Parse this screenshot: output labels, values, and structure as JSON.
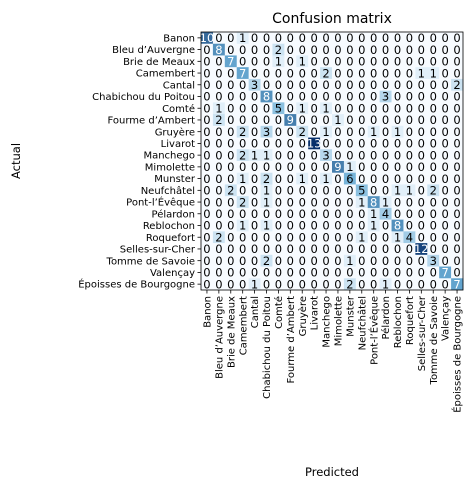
{
  "chart_data": {
    "type": "heatmap",
    "title": "Confusion matrix",
    "xlabel": "Predicted",
    "ylabel": "Actual",
    "categories": [
      "Banon",
      "Bleu d’Auvergne",
      "Brie de Meaux",
      "Camembert",
      "Cantal",
      "Chabichou du Poitou",
      "Comté",
      "Fourme d’Ambert",
      "Gruyère",
      "Livarot",
      "Manchego",
      "Mimolette",
      "Munster",
      "Neufchâtel",
      "Pont-l’Évêque",
      "Pélardon",
      "Reblochon",
      "Roquefort",
      "Selles-sur-Cher",
      "Tomme de Savoie",
      "Valençay",
      "Époisses de Bourgogne"
    ],
    "matrix": [
      [
        10,
        0,
        0,
        1,
        0,
        0,
        0,
        0,
        0,
        0,
        0,
        0,
        0,
        0,
        0,
        0,
        0,
        0,
        0,
        0,
        0,
        0
      ],
      [
        0,
        8,
        0,
        0,
        0,
        0,
        2,
        0,
        0,
        0,
        0,
        0,
        0,
        0,
        0,
        0,
        0,
        0,
        0,
        0,
        0,
        0
      ],
      [
        0,
        0,
        7,
        0,
        0,
        0,
        1,
        0,
        1,
        0,
        0,
        0,
        0,
        0,
        0,
        0,
        0,
        0,
        0,
        0,
        0,
        0
      ],
      [
        0,
        0,
        0,
        7,
        0,
        0,
        0,
        0,
        0,
        0,
        2,
        0,
        0,
        0,
        0,
        0,
        0,
        0,
        1,
        1,
        0,
        0
      ],
      [
        0,
        0,
        0,
        0,
        3,
        0,
        0,
        0,
        0,
        0,
        0,
        0,
        0,
        0,
        0,
        0,
        0,
        0,
        0,
        0,
        0,
        2
      ],
      [
        0,
        0,
        0,
        0,
        0,
        8,
        0,
        0,
        0,
        0,
        0,
        0,
        0,
        0,
        0,
        3,
        0,
        0,
        0,
        0,
        0,
        0
      ],
      [
        0,
        1,
        0,
        0,
        0,
        0,
        5,
        0,
        1,
        0,
        1,
        0,
        0,
        0,
        0,
        0,
        0,
        0,
        0,
        0,
        0,
        0
      ],
      [
        0,
        2,
        0,
        0,
        0,
        0,
        0,
        9,
        0,
        0,
        0,
        1,
        0,
        0,
        0,
        0,
        0,
        0,
        0,
        0,
        0,
        0
      ],
      [
        0,
        0,
        0,
        2,
        0,
        3,
        0,
        0,
        2,
        0,
        1,
        0,
        0,
        0,
        1,
        0,
        1,
        0,
        0,
        0,
        0,
        0
      ],
      [
        0,
        0,
        0,
        0,
        0,
        0,
        0,
        0,
        0,
        13,
        0,
        0,
        0,
        0,
        0,
        0,
        0,
        0,
        0,
        0,
        0,
        0
      ],
      [
        0,
        0,
        0,
        2,
        1,
        1,
        0,
        0,
        0,
        0,
        3,
        0,
        0,
        0,
        0,
        0,
        0,
        0,
        0,
        0,
        0,
        0
      ],
      [
        0,
        0,
        0,
        0,
        0,
        0,
        0,
        0,
        0,
        0,
        0,
        9,
        1,
        0,
        0,
        0,
        0,
        0,
        0,
        0,
        0,
        0
      ],
      [
        0,
        0,
        0,
        1,
        0,
        2,
        0,
        0,
        1,
        0,
        1,
        0,
        6,
        0,
        0,
        0,
        0,
        0,
        0,
        0,
        0,
        0
      ],
      [
        0,
        0,
        2,
        0,
        0,
        1,
        0,
        0,
        0,
        0,
        0,
        0,
        0,
        5,
        0,
        0,
        1,
        1,
        0,
        2,
        0,
        0
      ],
      [
        0,
        0,
        0,
        2,
        0,
        1,
        0,
        0,
        0,
        0,
        0,
        0,
        0,
        1,
        8,
        1,
        0,
        0,
        0,
        0,
        0,
        0
      ],
      [
        0,
        0,
        0,
        0,
        0,
        0,
        0,
        0,
        0,
        0,
        0,
        0,
        0,
        0,
        1,
        4,
        0,
        0,
        0,
        0,
        0,
        0
      ],
      [
        0,
        0,
        0,
        1,
        0,
        1,
        0,
        0,
        0,
        0,
        0,
        0,
        0,
        0,
        1,
        0,
        8,
        0,
        0,
        0,
        0,
        0
      ],
      [
        0,
        2,
        0,
        0,
        0,
        0,
        0,
        0,
        0,
        0,
        0,
        0,
        0,
        1,
        0,
        0,
        1,
        4,
        0,
        0,
        0,
        0
      ],
      [
        0,
        0,
        0,
        0,
        0,
        0,
        0,
        0,
        0,
        0,
        0,
        0,
        0,
        0,
        0,
        0,
        0,
        0,
        12,
        0,
        0,
        0
      ],
      [
        0,
        0,
        0,
        0,
        0,
        2,
        0,
        0,
        0,
        0,
        0,
        0,
        1,
        0,
        0,
        0,
        0,
        0,
        0,
        3,
        0,
        0
      ],
      [
        0,
        0,
        0,
        0,
        0,
        0,
        0,
        0,
        0,
        0,
        0,
        0,
        0,
        0,
        0,
        0,
        0,
        0,
        0,
        0,
        7,
        0
      ],
      [
        0,
        0,
        0,
        0,
        1,
        0,
        0,
        0,
        0,
        0,
        0,
        0,
        2,
        0,
        0,
        1,
        0,
        0,
        0,
        0,
        0,
        7
      ]
    ],
    "colormap": {
      "low": "#f7fbff",
      "high": "#08306b"
    },
    "grid": false
  }
}
